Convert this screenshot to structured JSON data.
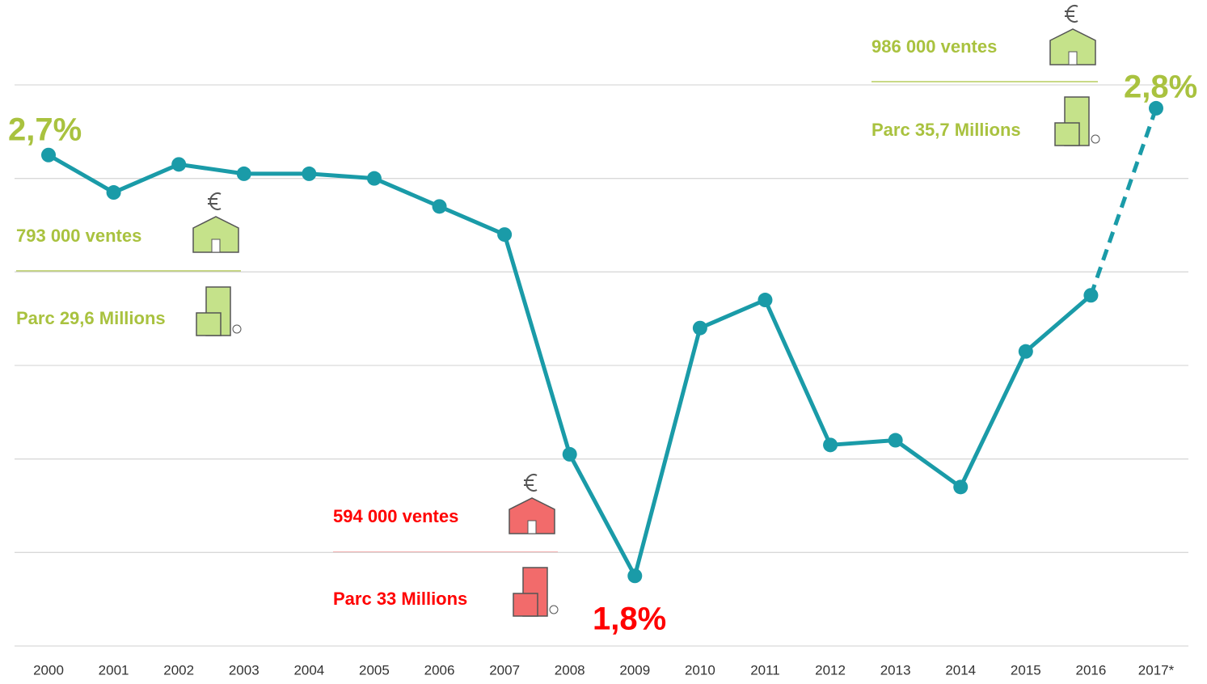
{
  "chart_data": {
    "type": "line",
    "categories": [
      "2000",
      "2001",
      "2002",
      "2003",
      "2004",
      "2005",
      "2006",
      "2007",
      "2008",
      "2009",
      "2010",
      "2011",
      "2012",
      "2013",
      "2014",
      "2015",
      "2016",
      "2017*"
    ],
    "series": [
      {
        "color": "#1a9ba8",
        "values": [
          2.7,
          2.62,
          2.68,
          2.66,
          2.66,
          2.65,
          2.59,
          2.53,
          2.06,
          1.8,
          2.33,
          2.39,
          2.08,
          2.09,
          1.99,
          2.28,
          2.4,
          2.8
        ]
      }
    ],
    "dashed_last_segment": true,
    "ylim": [
      1.65,
      2.85
    ],
    "yticks": [
      1.65,
      1.85,
      2.05,
      2.25,
      2.45,
      2.65,
      2.85
    ],
    "grid": true,
    "annotations": [
      {
        "text": "2,7%",
        "color": "#a9c23f"
      },
      {
        "text": "1,8%",
        "color": "#ff0000"
      },
      {
        "text": "2,8%",
        "color": "#a9c23f"
      },
      {
        "text": "793 000 ventes",
        "color": "#a9c23f"
      },
      {
        "text": "Parc 29,6 Millions",
        "color": "#a9c23f"
      },
      {
        "text": "594 000 ventes",
        "color": "#ff0000"
      },
      {
        "text": "Parc 33 Millions",
        "color": "#ff0000"
      },
      {
        "text": "986 000 ventes",
        "color": "#a9c23f"
      },
      {
        "text": "Parc 35,7 Millions",
        "color": "#a9c23f"
      }
    ]
  }
}
